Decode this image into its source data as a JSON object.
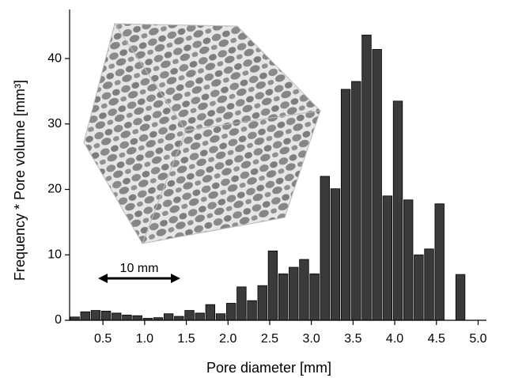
{
  "chart_data": {
    "type": "histogram",
    "xlabel": "Pore diameter  [mm]",
    "ylabel": "Frequency * Pore volume  [mm³]",
    "annotation": "10 mm",
    "bins": [
      0.1,
      0.225,
      0.35,
      0.475,
      0.6,
      0.725,
      0.85,
      0.975,
      1.1,
      1.225,
      1.35,
      1.475,
      1.6,
      1.725,
      1.85,
      1.975,
      2.1,
      2.225,
      2.35,
      2.475,
      2.6,
      2.725,
      2.85,
      2.975,
      3.1,
      3.225,
      3.35,
      3.475,
      3.6,
      3.725,
      3.85,
      3.975,
      4.1,
      4.225,
      4.35,
      4.475,
      4.6,
      4.725,
      4.85
    ],
    "values": [
      0.5,
      1.3,
      1.5,
      1.4,
      1.1,
      0.8,
      0.7,
      0.3,
      0.4,
      1.0,
      0.6,
      1.5,
      1.1,
      2.4,
      1.0,
      2.6,
      5.1,
      3.0,
      5.3,
      10.6,
      7.1,
      8.1,
      9.3,
      7.1,
      22,
      20.1,
      35.3,
      36.5,
      43.6,
      41.4,
      19,
      33.5,
      18.4,
      10,
      10.9,
      17.8,
      0,
      7.0
    ],
    "color": "#3a3a3a",
    "xlim": [
      0.1,
      5.1
    ],
    "ylim": [
      0,
      47.5
    ],
    "xticks": [
      0.5,
      {
        "value": 1,
        "label": "1.0"
      },
      1.5,
      {
        "value": 2,
        "label": "2.0"
      },
      2.5,
      {
        "value": 3,
        "label": "3.0"
      },
      3.5,
      {
        "value": 4,
        "label": "4.0"
      },
      4.5,
      {
        "value": 5,
        "label": "5.0"
      }
    ],
    "yticks": [
      0,
      10,
      20,
      30,
      40
    ]
  }
}
